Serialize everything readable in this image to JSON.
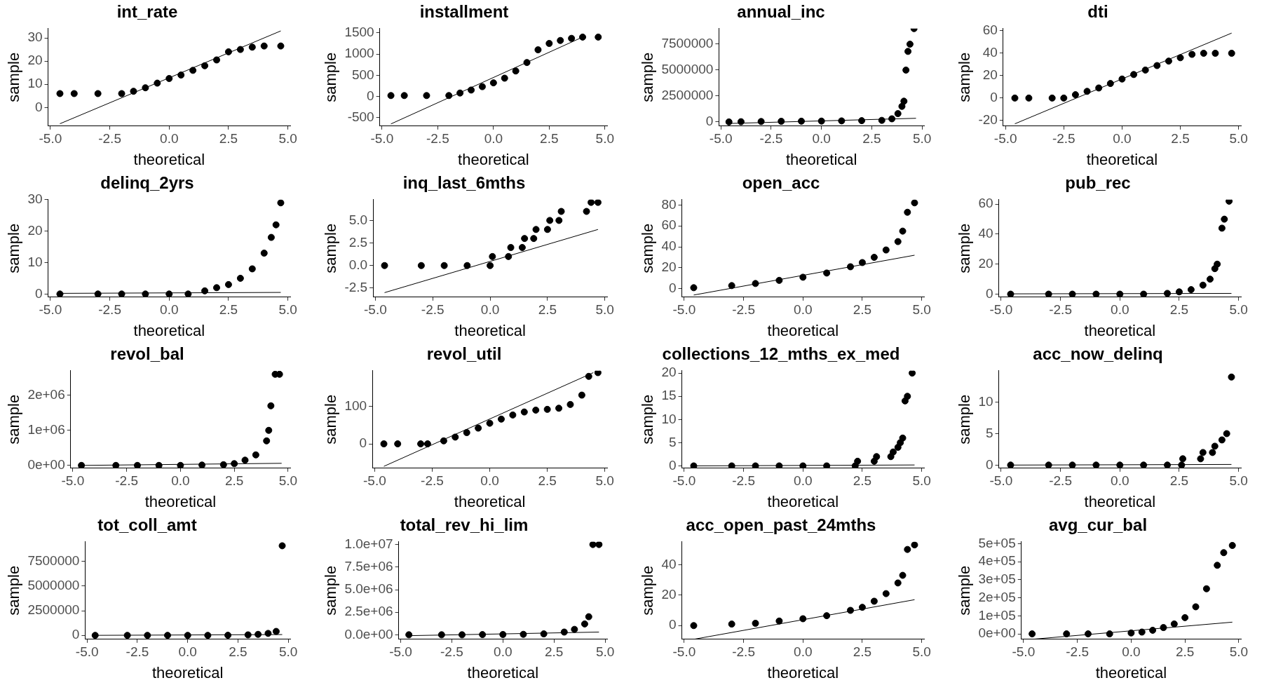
{
  "chart_data": [
    {
      "type": "scatter",
      "title": "int_rate",
      "xlabel": "theoretical",
      "ylabel": "sample",
      "legend": false,
      "grid": false,
      "xlim": [
        -5.1,
        5.1
      ],
      "xticks": [
        {
          "value": -5,
          "label": "-5.0"
        },
        {
          "value": -2.5,
          "label": "-2.5"
        },
        {
          "value": 0,
          "label": "0.0"
        },
        {
          "value": 2.5,
          "label": "2.5"
        },
        {
          "value": 5,
          "label": "5.0"
        }
      ],
      "ylim": [
        -8,
        34
      ],
      "yticks": [
        0,
        10,
        20,
        30
      ],
      "series": [
        {
          "type": "scatter",
          "marker": "circle",
          "color": "#000000",
          "x": [
            -4.6,
            -4,
            -3,
            -2,
            -1.5,
            -1,
            -0.5,
            0,
            0.5,
            1,
            1.5,
            2,
            2.5,
            3,
            3.5,
            4,
            4.7
          ],
          "values": [
            6,
            6,
            6,
            6,
            7,
            8.5,
            10.5,
            12.5,
            14,
            16,
            18,
            20.5,
            24,
            25,
            26,
            26.5,
            26.5
          ]
        },
        {
          "type": "line",
          "marker": "none",
          "line_style": "solid",
          "color": "#000000",
          "x": [
            -4.6,
            4.7
          ],
          "values": [
            -7,
            33
          ]
        }
      ]
    },
    {
      "type": "scatter",
      "title": "installment",
      "xlabel": "theoretical",
      "ylabel": "sample",
      "legend": false,
      "grid": false,
      "xlim": [
        -5.1,
        5.1
      ],
      "xticks": [
        {
          "value": -5,
          "label": "-5.0"
        },
        {
          "value": -2.5,
          "label": "-2.5"
        },
        {
          "value": 0,
          "label": "0.0"
        },
        {
          "value": 2.5,
          "label": "2.5"
        },
        {
          "value": 5,
          "label": "5.0"
        }
      ],
      "ylim": [
        -700,
        1600
      ],
      "yticks": [
        -500,
        0,
        500,
        1000,
        1500
      ],
      "series": [
        {
          "type": "scatter",
          "marker": "circle",
          "color": "#000000",
          "x": [
            -4.6,
            -4,
            -3,
            -2,
            -1.5,
            -1,
            -0.5,
            0,
            0.5,
            1,
            1.5,
            2,
            2.5,
            3,
            3.5,
            4,
            4.7
          ],
          "values": [
            20,
            20,
            20,
            20,
            80,
            150,
            230,
            320,
            430,
            600,
            800,
            1100,
            1250,
            1320,
            1370,
            1400,
            1400
          ]
        },
        {
          "type": "line",
          "marker": "none",
          "line_style": "solid",
          "color": "#000000",
          "x": [
            -4.6,
            4
          ],
          "values": [
            -650,
            1400
          ]
        }
      ]
    },
    {
      "type": "scatter",
      "title": "annual_inc",
      "xlabel": "theoretical",
      "ylabel": "sample",
      "legend": false,
      "grid": false,
      "xlim": [
        -5.1,
        5.1
      ],
      "xticks": [
        {
          "value": -5,
          "label": "-5.0"
        },
        {
          "value": -2.5,
          "label": "-2.5"
        },
        {
          "value": 0,
          "label": "0.0"
        },
        {
          "value": 2.5,
          "label": "2.5"
        },
        {
          "value": 5,
          "label": "5.0"
        }
      ],
      "ylim": [
        -400000,
        9000000
      ],
      "yticks": [
        0,
        2500000,
        5000000,
        7500000
      ],
      "series": [
        {
          "type": "scatter",
          "marker": "circle",
          "color": "#000000",
          "x": [
            -4.6,
            -4,
            -3,
            -2,
            -1,
            0,
            1,
            2,
            3,
            3.5,
            3.8,
            4,
            4.1,
            4.2,
            4.3,
            4.4,
            4.6
          ],
          "values": [
            0,
            20000,
            40000,
            60000,
            70000,
            80000,
            100000,
            120000,
            150000,
            300000,
            800000,
            1500000,
            2000000,
            5000000,
            6800000,
            7500000,
            9000000
          ]
        },
        {
          "type": "line",
          "marker": "none",
          "line_style": "solid",
          "color": "#000000",
          "x": [
            -4.6,
            4.7
          ],
          "values": [
            -150000,
            350000
          ]
        }
      ]
    },
    {
      "type": "scatter",
      "title": "dti",
      "xlabel": "theoretical",
      "ylabel": "sample",
      "legend": false,
      "grid": false,
      "xlim": [
        -5.1,
        5.1
      ],
      "xticks": [
        {
          "value": -5,
          "label": "-5.0"
        },
        {
          "value": -2.5,
          "label": "-2.5"
        },
        {
          "value": 0,
          "label": "0.0"
        },
        {
          "value": 2.5,
          "label": "2.5"
        },
        {
          "value": 5,
          "label": "5.0"
        }
      ],
      "ylim": [
        -25,
        62
      ],
      "yticks": [
        -20,
        0,
        20,
        40,
        60
      ],
      "series": [
        {
          "type": "scatter",
          "marker": "circle",
          "color": "#000000",
          "x": [
            -4.6,
            -4,
            -3,
            -2.5,
            -2,
            -1.5,
            -1,
            -0.5,
            0,
            0.5,
            1,
            1.5,
            2,
            2.5,
            3,
            3.5,
            4,
            4.7
          ],
          "values": [
            0,
            0,
            0,
            0,
            3,
            6,
            9,
            13,
            17,
            21,
            25,
            29,
            33,
            36,
            39,
            40,
            40,
            40
          ]
        },
        {
          "type": "line",
          "marker": "none",
          "line_style": "solid",
          "color": "#000000",
          "x": [
            -4.6,
            4.7
          ],
          "values": [
            -23,
            58
          ]
        }
      ]
    },
    {
      "type": "scatter",
      "title": "delinq_2yrs",
      "xlabel": "theoretical",
      "ylabel": "sample",
      "legend": false,
      "grid": false,
      "xlim": [
        -5.1,
        5.1
      ],
      "xticks": [
        {
          "value": -5,
          "label": "-5.0"
        },
        {
          "value": -2.5,
          "label": "-2.5"
        },
        {
          "value": 0,
          "label": "0.0"
        },
        {
          "value": 2.5,
          "label": "2.5"
        },
        {
          "value": 5,
          "label": "5.0"
        }
      ],
      "ylim": [
        -1,
        30
      ],
      "yticks": [
        0,
        10,
        20,
        30
      ],
      "series": [
        {
          "type": "scatter",
          "marker": "circle",
          "color": "#000000",
          "x": [
            -4.6,
            -3,
            -2,
            -1,
            0,
            0.8,
            1.5,
            2,
            2.5,
            3,
            3.5,
            4,
            4.3,
            4.5,
            4.7
          ],
          "values": [
            0,
            0,
            0,
            0,
            0,
            0,
            1,
            2,
            3,
            5,
            8,
            13,
            18,
            22,
            29
          ]
        },
        {
          "type": "line",
          "marker": "none",
          "line_style": "solid",
          "color": "#000000",
          "x": [
            -4.6,
            4.7
          ],
          "values": [
            0.2,
            0.5
          ]
        }
      ]
    },
    {
      "type": "scatter",
      "title": "inq_last_6mths",
      "xlabel": "theoretical",
      "ylabel": "sample",
      "legend": false,
      "grid": false,
      "xlim": [
        -5.1,
        5.1
      ],
      "xticks": [
        {
          "value": -5,
          "label": "-5.0"
        },
        {
          "value": -2.5,
          "label": "-2.5"
        },
        {
          "value": 0,
          "label": "0.0"
        },
        {
          "value": 2.5,
          "label": "2.5"
        },
        {
          "value": 5,
          "label": "5.0"
        }
      ],
      "ylim": [
        -3.5,
        7.3
      ],
      "yticks": [
        {
          "value": -2.5,
          "label": "-2.5"
        },
        {
          "value": 0,
          "label": "0.0"
        },
        {
          "value": 2.5,
          "label": "2.5"
        },
        {
          "value": 5,
          "label": "5.0"
        }
      ],
      "series": [
        {
          "type": "scatter",
          "marker": "circle",
          "color": "#000000",
          "x": [
            -4.6,
            -3,
            -2,
            -1,
            0,
            0.1,
            0.8,
            0.9,
            1.4,
            1.5,
            1.9,
            2,
            2.5,
            2.6,
            3,
            3.1,
            4.2,
            4.4,
            4.7
          ],
          "values": [
            0,
            0,
            0,
            0,
            0,
            1,
            1,
            2,
            2,
            3,
            3,
            4,
            4,
            5,
            5,
            6,
            6,
            7,
            7
          ]
        },
        {
          "type": "line",
          "marker": "none",
          "line_style": "solid",
          "color": "#000000",
          "x": [
            -4.6,
            4.7
          ],
          "values": [
            -3,
            4
          ]
        }
      ]
    },
    {
      "type": "scatter",
      "title": "open_acc",
      "xlabel": "theoretical",
      "ylabel": "sample",
      "legend": false,
      "grid": false,
      "xlim": [
        -5.1,
        5.1
      ],
      "xticks": [
        {
          "value": -5,
          "label": "-5.0"
        },
        {
          "value": -2.5,
          "label": "-2.5"
        },
        {
          "value": 0,
          "label": "0.0"
        },
        {
          "value": 2.5,
          "label": "2.5"
        },
        {
          "value": 5,
          "label": "5.0"
        }
      ],
      "ylim": [
        -8,
        85
      ],
      "yticks": [
        0,
        20,
        40,
        60,
        80
      ],
      "series": [
        {
          "type": "scatter",
          "marker": "circle",
          "color": "#000000",
          "x": [
            -4.6,
            -3,
            -2,
            -1,
            0,
            1,
            2,
            2.5,
            3,
            3.5,
            4,
            4.2,
            4.4,
            4.7
          ],
          "values": [
            1,
            3,
            5,
            8,
            11,
            15,
            21,
            25,
            30,
            37,
            45,
            55,
            73,
            82
          ]
        },
        {
          "type": "line",
          "marker": "none",
          "line_style": "solid",
          "color": "#000000",
          "x": [
            -4.6,
            4.7
          ],
          "values": [
            -6,
            32
          ]
        }
      ]
    },
    {
      "type": "scatter",
      "title": "pub_rec",
      "xlabel": "theoretical",
      "ylabel": "sample",
      "legend": false,
      "grid": false,
      "xlim": [
        -5.1,
        5.1
      ],
      "xticks": [
        {
          "value": -5,
          "label": "-5.0"
        },
        {
          "value": -2.5,
          "label": "-2.5"
        },
        {
          "value": 0,
          "label": "0.0"
        },
        {
          "value": 2.5,
          "label": "2.5"
        },
        {
          "value": 5,
          "label": "5.0"
        }
      ],
      "ylim": [
        -2,
        63
      ],
      "yticks": [
        0,
        20,
        40,
        60
      ],
      "series": [
        {
          "type": "scatter",
          "marker": "circle",
          "color": "#000000",
          "x": [
            -4.6,
            -3,
            -2,
            -1,
            0,
            1,
            2,
            2.5,
            3,
            3.5,
            3.8,
            4,
            4.1,
            4.3,
            4.4,
            4.6
          ],
          "values": [
            0,
            0,
            0,
            0,
            0,
            0,
            0.5,
            1.5,
            3,
            6,
            10,
            17,
            20,
            44,
            50,
            62
          ]
        },
        {
          "type": "line",
          "marker": "none",
          "line_style": "solid",
          "color": "#000000",
          "x": [
            -4.6,
            4.7
          ],
          "values": [
            0.2,
            0.5
          ]
        }
      ]
    },
    {
      "type": "scatter",
      "title": "revol_bal",
      "xlabel": "theoretical",
      "ylabel": "sample",
      "legend": false,
      "grid": false,
      "xlim": [
        -5.1,
        5.1
      ],
      "xticks": [
        {
          "value": -5,
          "label": "-5.0"
        },
        {
          "value": -2.5,
          "label": "-2.5"
        },
        {
          "value": 0,
          "label": "0.0"
        },
        {
          "value": 2.5,
          "label": "2.5"
        },
        {
          "value": 5,
          "label": "5.0"
        }
      ],
      "ylim": [
        -80000,
        2700000
      ],
      "yticks": [
        {
          "value": 0,
          "label": "0e+00"
        },
        {
          "value": 1000000,
          "label": "1e+06"
        },
        {
          "value": 2000000,
          "label": "2e+06"
        }
      ],
      "series": [
        {
          "type": "scatter",
          "marker": "circle",
          "color": "#000000",
          "x": [
            -4.6,
            -3,
            -2,
            -1,
            0,
            1,
            2,
            2.5,
            3,
            3.5,
            4,
            4.1,
            4.2,
            4.4,
            4.6
          ],
          "values": [
            0,
            0,
            0,
            0,
            0,
            10000,
            20000,
            50000,
            150000,
            300000,
            700000,
            1000000,
            1700000,
            2600000,
            2600000
          ]
        },
        {
          "type": "line",
          "marker": "none",
          "line_style": "solid",
          "color": "#000000",
          "x": [
            -4.6,
            4.7
          ],
          "values": [
            0,
            60000
          ]
        }
      ]
    },
    {
      "type": "scatter",
      "title": "revol_util",
      "xlabel": "theoretical",
      "ylabel": "sample",
      "legend": false,
      "grid": false,
      "xlim": [
        -5.1,
        5.1
      ],
      "xticks": [
        {
          "value": -5,
          "label": "-5.0"
        },
        {
          "value": -2.5,
          "label": "-2.5"
        },
        {
          "value": 0,
          "label": "0.0"
        },
        {
          "value": 2.5,
          "label": "2.5"
        },
        {
          "value": 5,
          "label": "5.0"
        }
      ],
      "ylim": [
        -65,
        195
      ],
      "yticks": [
        0,
        100
      ],
      "series": [
        {
          "type": "scatter",
          "marker": "circle",
          "color": "#000000",
          "x": [
            -4.6,
            -4,
            -3,
            -2.7,
            -2,
            -1.5,
            -1,
            -0.5,
            0,
            0.5,
            1,
            1.5,
            2,
            2.5,
            3,
            3.5,
            4,
            4.3,
            4.7
          ],
          "values": [
            0,
            0,
            0,
            0,
            8,
            18,
            30,
            42,
            55,
            66,
            77,
            85,
            90,
            92,
            95,
            105,
            130,
            180,
            190
          ]
        },
        {
          "type": "line",
          "marker": "none",
          "line_style": "solid",
          "color": "#000000",
          "x": [
            -4.6,
            4.5
          ],
          "values": [
            -60,
            190
          ]
        }
      ]
    },
    {
      "type": "scatter",
      "title": "collections_12_mths_ex_med",
      "xlabel": "theoretical",
      "ylabel": "sample",
      "legend": false,
      "grid": false,
      "xlim": [
        -5.1,
        5.1
      ],
      "xticks": [
        {
          "value": -5,
          "label": "-5.0"
        },
        {
          "value": -2.5,
          "label": "-2.5"
        },
        {
          "value": 0,
          "label": "0.0"
        },
        {
          "value": 2.5,
          "label": "2.5"
        },
        {
          "value": 5,
          "label": "5.0"
        }
      ],
      "ylim": [
        -0.5,
        20.5
      ],
      "yticks": [
        0,
        5,
        10,
        15,
        20
      ],
      "series": [
        {
          "type": "scatter",
          "marker": "circle",
          "color": "#000000",
          "x": [
            -4.6,
            -3,
            -2,
            -1,
            0,
            1,
            2.2,
            2.3,
            3,
            3.1,
            3.7,
            3.8,
            4,
            4.1,
            4.2,
            4.3,
            4.4,
            4.6
          ],
          "values": [
            0,
            0,
            0,
            0,
            0,
            0,
            0,
            1,
            1,
            2,
            2,
            3,
            4,
            5,
            6,
            14,
            15,
            20
          ]
        },
        {
          "type": "line",
          "marker": "none",
          "line_style": "solid",
          "color": "#000000",
          "x": [
            -4.6,
            4.7
          ],
          "values": [
            0,
            0.2
          ]
        }
      ]
    },
    {
      "type": "scatter",
      "title": "acc_now_delinq",
      "xlabel": "theoretical",
      "ylabel": "sample",
      "legend": false,
      "grid": false,
      "xlim": [
        -5.1,
        5.1
      ],
      "xticks": [
        {
          "value": -5,
          "label": "-5.0"
        },
        {
          "value": -2.5,
          "label": "-2.5"
        },
        {
          "value": 0,
          "label": "0.0"
        },
        {
          "value": 2.5,
          "label": "2.5"
        },
        {
          "value": 5,
          "label": "5.0"
        }
      ],
      "ylim": [
        -0.5,
        15
      ],
      "yticks": [
        0,
        5,
        10
      ],
      "series": [
        {
          "type": "scatter",
          "marker": "circle",
          "color": "#000000",
          "x": [
            -4.6,
            -3,
            -2,
            -1,
            0,
            1,
            2,
            2.6,
            2.65,
            3.4,
            3.5,
            3.9,
            4,
            4.3,
            4.5,
            4.7
          ],
          "values": [
            0,
            0,
            0,
            0,
            0,
            0,
            0,
            0,
            1,
            1,
            2,
            2,
            3,
            4,
            5,
            14
          ]
        },
        {
          "type": "line",
          "marker": "none",
          "line_style": "solid",
          "color": "#000000",
          "x": [
            -4.6,
            4.7
          ],
          "values": [
            0,
            0.1
          ]
        }
      ]
    },
    {
      "type": "scatter",
      "title": "tot_coll_amt",
      "xlabel": "theoretical",
      "ylabel": "sample",
      "legend": false,
      "grid": false,
      "xlim": [
        -5.1,
        5.1
      ],
      "xticks": [
        {
          "value": -5,
          "label": "-5.0"
        },
        {
          "value": -2.5,
          "label": "-2.5"
        },
        {
          "value": 0,
          "label": "0.0"
        },
        {
          "value": 2.5,
          "label": "2.5"
        },
        {
          "value": 5,
          "label": "5.0"
        }
      ],
      "ylim": [
        -400000,
        9500000
      ],
      "yticks": [
        0,
        2500000,
        5000000,
        7500000
      ],
      "series": [
        {
          "type": "scatter",
          "marker": "circle",
          "color": "#000000",
          "x": [
            -4.6,
            -3,
            -2,
            -1,
            0,
            1,
            2,
            3,
            3.5,
            4,
            4.4,
            4.7
          ],
          "values": [
            0,
            0,
            0,
            0,
            0,
            0,
            10000,
            50000,
            100000,
            200000,
            400000,
            9100000
          ]
        },
        {
          "type": "line",
          "marker": "none",
          "line_style": "solid",
          "color": "#000000",
          "x": [
            -4.6,
            4.7
          ],
          "values": [
            0,
            80000
          ]
        }
      ]
    },
    {
      "type": "scatter",
      "title": "total_rev_hi_lim",
      "xlabel": "theoretical",
      "ylabel": "sample",
      "legend": false,
      "grid": false,
      "xlim": [
        -5.1,
        5.1
      ],
      "xticks": [
        {
          "value": -5,
          "label": "-5.0"
        },
        {
          "value": -2.5,
          "label": "-2.5"
        },
        {
          "value": 0,
          "label": "0.0"
        },
        {
          "value": 2.5,
          "label": "2.5"
        },
        {
          "value": 5,
          "label": "5.0"
        }
      ],
      "ylim": [
        -500000,
        10300000
      ],
      "yticks": [
        {
          "value": 0,
          "label": "0.0e+00"
        },
        {
          "value": 2500000,
          "label": "2.5e+06"
        },
        {
          "value": 5000000,
          "label": "5.0e+06"
        },
        {
          "value": 7500000,
          "label": "7.5e+06"
        },
        {
          "value": 10000000,
          "label": "1.0e+07"
        }
      ],
      "series": [
        {
          "type": "scatter",
          "marker": "circle",
          "color": "#000000",
          "x": [
            -4.6,
            -3,
            -2,
            -1,
            0,
            1,
            2,
            3,
            3.5,
            4,
            4.2,
            4.4,
            4.7
          ],
          "values": [
            0,
            0,
            0,
            20000,
            30000,
            50000,
            100000,
            300000,
            600000,
            1200000,
            2000000,
            10000000,
            10000000
          ]
        },
        {
          "type": "line",
          "marker": "none",
          "line_style": "solid",
          "color": "#000000",
          "x": [
            -4.6,
            4.7
          ],
          "values": [
            -100000,
            300000
          ]
        }
      ]
    },
    {
      "type": "scatter",
      "title": "acc_open_past_24mths",
      "xlabel": "theoretical",
      "ylabel": "sample",
      "legend": false,
      "grid": false,
      "xlim": [
        -5.1,
        5.1
      ],
      "xticks": [
        {
          "value": -5,
          "label": "-5.0"
        },
        {
          "value": -2.5,
          "label": "-2.5"
        },
        {
          "value": 0,
          "label": "0.0"
        },
        {
          "value": 2.5,
          "label": "2.5"
        },
        {
          "value": 5,
          "label": "5.0"
        }
      ],
      "ylim": [
        -9,
        55
      ],
      "yticks": [
        0,
        20,
        40
      ],
      "series": [
        {
          "type": "scatter",
          "marker": "circle",
          "color": "#000000",
          "x": [
            -4.6,
            -3,
            -2,
            -1,
            0,
            1,
            2,
            2.5,
            3,
            3.5,
            4,
            4.2,
            4.4,
            4.7
          ],
          "values": [
            0,
            1,
            1.5,
            3,
            4.5,
            6.5,
            10,
            12,
            16,
            21,
            28,
            33,
            50,
            53
          ]
        },
        {
          "type": "line",
          "marker": "none",
          "line_style": "solid",
          "color": "#000000",
          "x": [
            -4.6,
            4.7
          ],
          "values": [
            -9,
            17
          ]
        }
      ]
    },
    {
      "type": "scatter",
      "title": "avg_cur_bal",
      "xlabel": "theoretical",
      "ylabel": "sample",
      "legend": false,
      "grid": false,
      "xlim": [
        -5.1,
        5.1
      ],
      "xticks": [
        {
          "value": -5,
          "label": "-5.0"
        },
        {
          "value": -2.5,
          "label": "-2.5"
        },
        {
          "value": 0,
          "label": "0.0"
        },
        {
          "value": 2.5,
          "label": "2.5"
        },
        {
          "value": 5,
          "label": "5.0"
        }
      ],
      "ylim": [
        -30000,
        510000
      ],
      "yticks": [
        {
          "value": 0,
          "label": "0e+00"
        },
        {
          "value": 100000,
          "label": "1e+05"
        },
        {
          "value": 200000,
          "label": "2e+05"
        },
        {
          "value": 300000,
          "label": "3e+05"
        },
        {
          "value": 400000,
          "label": "4e+05"
        },
        {
          "value": 500000,
          "label": "5e+05"
        }
      ],
      "series": [
        {
          "type": "scatter",
          "marker": "circle",
          "color": "#000000",
          "x": [
            -4.6,
            -3,
            -2,
            -1,
            0,
            0.5,
            1,
            1.5,
            2,
            2.5,
            3,
            3.5,
            4,
            4.3,
            4.7
          ],
          "values": [
            0,
            0,
            0,
            0,
            5000,
            10000,
            20000,
            35000,
            55000,
            90000,
            150000,
            250000,
            380000,
            450000,
            490000
          ]
        },
        {
          "type": "line",
          "marker": "none",
          "line_style": "solid",
          "color": "#000000",
          "x": [
            -4.6,
            4.7
          ],
          "values": [
            -30000,
            65000
          ]
        }
      ]
    }
  ]
}
